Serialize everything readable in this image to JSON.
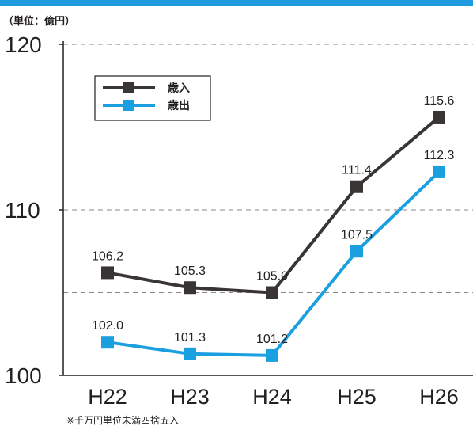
{
  "unit_label": "（単位：億円）",
  "footnote": "※千万円単位未満四捨五入",
  "colors": {
    "banner": "#1f9be0",
    "revenue": "#3a3535",
    "expenditure": "#1a9fe0",
    "axis": "#231f20",
    "grid": "#8a8a8a"
  },
  "chart_data": {
    "type": "line",
    "categories": [
      "H22",
      "H23",
      "H24",
      "H25",
      "H26"
    ],
    "series": [
      {
        "name": "歳入",
        "values": [
          106.2,
          105.3,
          105.0,
          111.4,
          115.6
        ],
        "color": "#3a3535",
        "marker": "square"
      },
      {
        "name": "歳出",
        "values": [
          102.0,
          101.3,
          101.2,
          107.5,
          112.3
        ],
        "color": "#1a9fe0",
        "marker": "square"
      }
    ],
    "ylim": [
      100,
      120
    ],
    "yticks": [
      100,
      110,
      120
    ],
    "gridlines": [
      105,
      110,
      115,
      120
    ],
    "legend_position": "top-left",
    "title": "",
    "xlabel": "",
    "ylabel": ""
  }
}
